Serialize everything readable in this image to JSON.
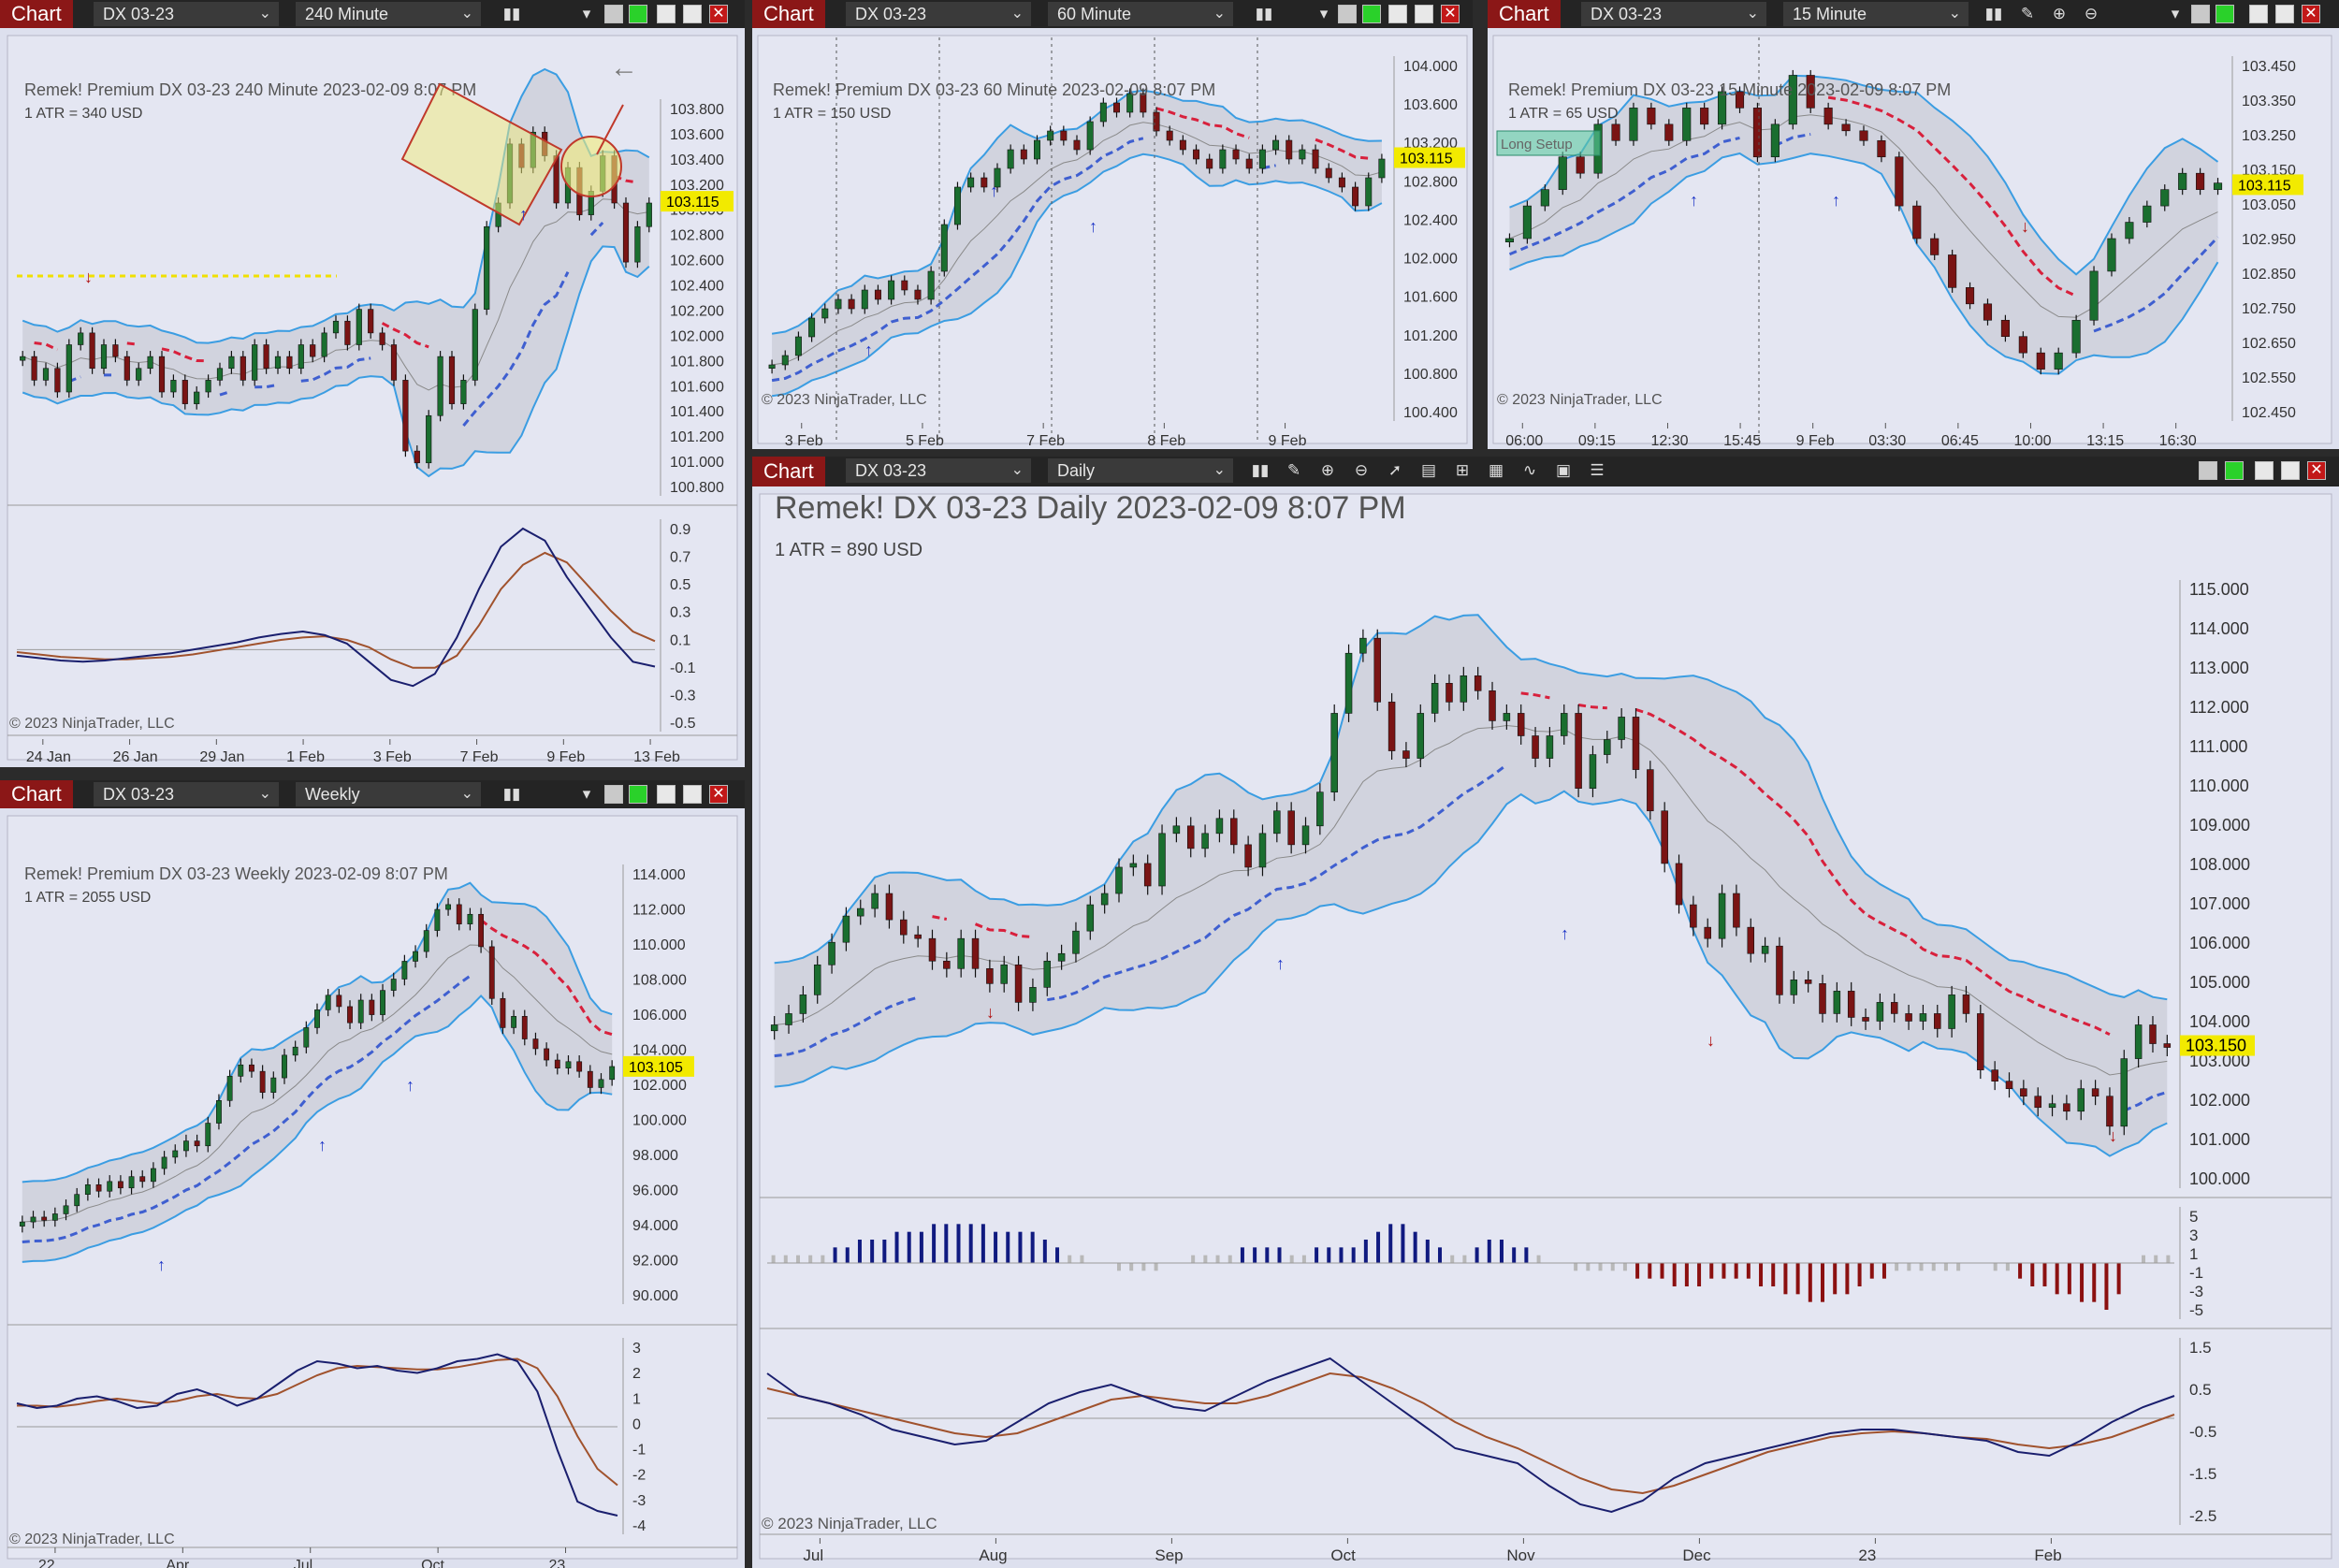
{
  "app": {
    "chart_label": "Chart"
  },
  "windows": [
    {
      "id": "w1",
      "instrument": "DX 03-23",
      "timeframe": "240 Minute",
      "header": "Remek!  Premium  DX 03-23  240 Minute  2023-02-09 8:07 PM",
      "atr": "1 ATR = 340 USD",
      "copyright": "© 2023 NinjaTrader, LLC",
      "last_price": "103.115",
      "y_ticks": [
        "103.800",
        "103.600",
        "103.400",
        "103.200",
        "103.000",
        "102.800",
        "102.600",
        "102.400",
        "102.200",
        "102.000",
        "101.800",
        "101.600",
        "101.400",
        "101.200",
        "101.000",
        "100.800"
      ],
      "osc_ticks": [
        "0.9",
        "0.7",
        "0.5",
        "0.3",
        "0.1",
        "-0.1",
        "-0.3",
        "-0.5"
      ],
      "x_ticks": [
        "24 Jan",
        "26 Jan",
        "29 Jan",
        "1 Feb",
        "3 Feb",
        "7 Feb",
        "9 Feb",
        "13 Feb"
      ]
    },
    {
      "id": "w2",
      "instrument": "DX 03-23",
      "timeframe": "60 Minute",
      "header": "Remek!  Premium  DX 03-23  60 Minute  2023-02-09 8:07 PM",
      "atr": "1 ATR = 150 USD",
      "copyright": "© 2023 NinjaTrader, LLC",
      "last_price": "103.115",
      "y_ticks": [
        "104.000",
        "103.600",
        "103.200",
        "102.800",
        "102.400",
        "102.000",
        "101.600",
        "101.200",
        "100.800",
        "100.400"
      ],
      "x_ticks": [
        "3 Feb",
        "5 Feb",
        "7 Feb",
        "8 Feb",
        "9 Feb"
      ]
    },
    {
      "id": "w3",
      "instrument": "DX 03-23",
      "timeframe": "15 Minute",
      "header": "Remek!  Premium  DX 03-23  15 Minute  2023-02-09 8:07 PM",
      "atr": "1 ATR = 65 USD",
      "copyright": "© 2023 NinjaTrader, LLC",
      "last_price": "103.115",
      "box_label": "Long Setup",
      "y_ticks": [
        "103.450",
        "103.350",
        "103.250",
        "103.150",
        "103.050",
        "102.950",
        "102.850",
        "102.750",
        "102.650",
        "102.550",
        "102.450"
      ],
      "x_ticks": [
        "06:00",
        "09:15",
        "12:30",
        "15:45",
        "9 Feb",
        "03:30",
        "06:45",
        "10:00",
        "13:15",
        "16:30"
      ]
    },
    {
      "id": "w4",
      "instrument": "DX 03-23",
      "timeframe": "Weekly",
      "header": "Remek!  Premium  DX 03-23  Weekly  2023-02-09 8:07 PM",
      "atr": "1 ATR = 2055 USD",
      "copyright": "© 2023 NinjaTrader, LLC",
      "last_price": "103.105",
      "y_ticks": [
        "114.000",
        "112.000",
        "110.000",
        "108.000",
        "106.000",
        "104.000",
        "102.000",
        "100.000",
        "98.000",
        "96.000",
        "94.000",
        "92.000",
        "90.000"
      ],
      "osc_ticks": [
        "3",
        "2",
        "1",
        "0",
        "-1",
        "-2",
        "-3",
        "-4"
      ],
      "x_ticks": [
        "22",
        "Apr",
        "Jul",
        "Oct",
        "23"
      ]
    },
    {
      "id": "w5",
      "instrument": "DX 03-23",
      "timeframe": "Daily",
      "header": "Remek!  DX 03-23  Daily  2023-02-09 8:07 PM",
      "atr": "1 ATR = 890 USD",
      "copyright": "© 2023 NinjaTrader, LLC",
      "last_price": "103.150",
      "y_ticks": [
        "115.000",
        "114.000",
        "113.000",
        "112.000",
        "111.000",
        "110.000",
        "109.000",
        "108.000",
        "107.000",
        "106.000",
        "105.000",
        "104.000",
        "103.000",
        "102.000",
        "101.000",
        "100.000"
      ],
      "hist_ticks": [
        "5",
        "3",
        "1",
        "-1",
        "-3",
        "-5"
      ],
      "osc_ticks": [
        "1.5",
        "0.5",
        "-0.5",
        "-1.5",
        "-2.5"
      ],
      "x_ticks": [
        "Jul",
        "Aug",
        "Sep",
        "Oct",
        "Nov",
        "Dec",
        "23",
        "Feb"
      ]
    }
  ],
  "colors": {
    "up": "#1a6e2f",
    "down": "#7a1414",
    "band": "#3b9de2",
    "trail_up": "#3f5fd0",
    "trail_down": "#d8203c",
    "stop": "#f0e000",
    "macd": "#1a1f6e",
    "signal": "#a0522d",
    "hist_up": "#101a80",
    "hist_down": "#8b1010",
    "hist_neutral": "#b8b8b8",
    "price_tag": "#f2ea00"
  },
  "chart_data": [
    {
      "type": "candlestick",
      "title": "Remek!  Premium  DX 03-23  240 Minute  2023-02-09 8:07 PM",
      "ylim": [
        100.7,
        103.9
      ],
      "close": [
        101.8,
        101.6,
        101.7,
        101.5,
        101.9,
        102.0,
        101.7,
        101.9,
        101.8,
        101.6,
        101.7,
        101.8,
        101.5,
        101.6,
        101.4,
        101.5,
        101.6,
        101.7,
        101.8,
        101.6,
        101.9,
        101.7,
        101.8,
        101.7,
        101.9,
        101.8,
        102.0,
        102.1,
        101.9,
        102.2,
        102.0,
        101.9,
        101.6,
        101.0,
        100.9,
        101.3,
        101.8,
        101.4,
        101.6,
        102.2,
        102.9,
        103.1,
        103.6,
        103.4,
        103.7,
        103.5,
        103.1,
        103.4,
        103.0,
        103.2,
        103.5,
        103.1,
        102.6,
        102.9,
        103.1
      ],
      "osc": {
        "ylim": [
          -0.6,
          1.0
        ],
        "macd": [
          -0.05,
          -0.07,
          -0.09,
          -0.1,
          -0.09,
          -0.07,
          -0.05,
          -0.03,
          0.0,
          0.03,
          0.06,
          0.1,
          0.13,
          0.15,
          0.12,
          0.05,
          -0.1,
          -0.25,
          -0.3,
          -0.2,
          0.1,
          0.5,
          0.85,
          1.0,
          0.9,
          0.6,
          0.35,
          0.1,
          -0.1,
          -0.14
        ],
        "signal": [
          -0.02,
          -0.04,
          -0.06,
          -0.07,
          -0.08,
          -0.08,
          -0.07,
          -0.06,
          -0.04,
          -0.01,
          0.02,
          0.05,
          0.08,
          0.1,
          0.11,
          0.08,
          0.02,
          -0.08,
          -0.15,
          -0.15,
          -0.05,
          0.2,
          0.5,
          0.7,
          0.8,
          0.72,
          0.52,
          0.32,
          0.15,
          0.07
        ]
      }
    },
    {
      "type": "candlestick",
      "title": "Remek!  Premium  DX 03-23  60 Minute  2023-02-09 8:07 PM",
      "ylim": [
        100.4,
        104.1
      ],
      "close": [
        100.9,
        101.0,
        101.2,
        101.4,
        101.5,
        101.6,
        101.5,
        101.7,
        101.6,
        101.8,
        101.7,
        101.6,
        101.9,
        102.4,
        102.8,
        102.9,
        102.8,
        103.0,
        103.2,
        103.1,
        103.3,
        103.4,
        103.3,
        103.2,
        103.5,
        103.7,
        103.6,
        103.8,
        103.6,
        103.4,
        103.3,
        103.2,
        103.1,
        103.0,
        103.2,
        103.1,
        103.0,
        103.2,
        103.3,
        103.1,
        103.2,
        103.0,
        102.9,
        102.8,
        102.6,
        102.9,
        103.1
      ]
    },
    {
      "type": "candlestick",
      "title": "Remek!  Premium  DX 03-23  15 Minute  2023-02-09 8:07 PM",
      "ylim": [
        102.42,
        103.48
      ],
      "close": [
        102.95,
        103.05,
        103.1,
        103.2,
        103.15,
        103.3,
        103.25,
        103.35,
        103.3,
        103.25,
        103.35,
        103.3,
        103.4,
        103.35,
        103.2,
        103.3,
        103.45,
        103.35,
        103.3,
        103.28,
        103.25,
        103.2,
        103.05,
        102.95,
        102.9,
        102.8,
        102.75,
        102.7,
        102.65,
        102.6,
        102.55,
        102.6,
        102.7,
        102.85,
        102.95,
        103.0,
        103.05,
        103.1,
        103.15,
        103.1,
        103.12
      ]
    },
    {
      "type": "candlestick",
      "title": "Remek!  Premium  DX 03-23  Weekly  2023-02-09 8:07 PM",
      "ylim": [
        89.0,
        115.0
      ],
      "close": [
        93.5,
        93.8,
        93.6,
        94.0,
        94.5,
        95.2,
        95.8,
        95.4,
        96.0,
        95.6,
        96.3,
        96.0,
        96.8,
        97.5,
        97.9,
        98.5,
        98.2,
        99.6,
        101.0,
        102.5,
        103.2,
        102.8,
        101.5,
        102.4,
        103.8,
        104.3,
        105.5,
        106.6,
        107.5,
        106.8,
        105.8,
        107.2,
        106.3,
        107.8,
        108.5,
        109.6,
        110.2,
        111.5,
        112.8,
        113.1,
        111.9,
        112.5,
        110.5,
        107.3,
        105.5,
        106.2,
        104.8,
        104.2,
        103.5,
        103.0,
        103.4,
        102.8,
        101.8,
        102.3,
        103.1
      ],
      "osc": {
        "ylim": [
          -4.2,
          3.4
        ],
        "macd": [
          1.0,
          0.8,
          0.9,
          1.2,
          1.3,
          1.1,
          0.8,
          0.9,
          1.4,
          1.6,
          1.3,
          0.9,
          1.2,
          1.8,
          2.4,
          2.8,
          2.7,
          2.5,
          2.6,
          2.4,
          2.3,
          2.5,
          2.8,
          2.9,
          3.1,
          2.8,
          1.5,
          -1.0,
          -3.2,
          -3.6,
          -3.8
        ],
        "signal": [
          0.9,
          0.9,
          0.85,
          0.95,
          1.1,
          1.2,
          1.1,
          1.0,
          1.1,
          1.3,
          1.4,
          1.25,
          1.2,
          1.4,
          1.8,
          2.2,
          2.5,
          2.6,
          2.55,
          2.5,
          2.45,
          2.45,
          2.55,
          2.7,
          2.85,
          2.9,
          2.5,
          1.3,
          -0.4,
          -1.8,
          -2.5
        ]
      }
    },
    {
      "type": "candlestick",
      "title": "Remek!  DX 03-23  Daily  2023-02-09 8:07 PM",
      "ylim": [
        99.6,
        115.3
      ],
      "close": [
        103.7,
        104.0,
        104.5,
        105.3,
        105.9,
        106.6,
        106.8,
        107.2,
        106.5,
        106.1,
        106.0,
        105.4,
        105.2,
        106.0,
        105.2,
        104.8,
        105.3,
        104.3,
        104.7,
        105.4,
        105.6,
        106.2,
        106.9,
        107.2,
        107.9,
        108.0,
        107.4,
        108.8,
        109.0,
        108.4,
        108.8,
        109.2,
        108.5,
        107.9,
        108.8,
        109.4,
        108.5,
        109.0,
        109.9,
        112.0,
        113.6,
        114.0,
        112.3,
        111.0,
        110.8,
        112.0,
        112.8,
        112.3,
        113.0,
        112.6,
        111.8,
        112.0,
        111.4,
        110.8,
        111.4,
        112.0,
        110.0,
        110.9,
        111.3,
        111.9,
        110.5,
        109.4,
        108.0,
        106.9,
        106.3,
        106.0,
        107.2,
        106.3,
        105.6,
        105.8,
        104.5,
        104.9,
        104.8,
        104.0,
        104.6,
        103.9,
        103.8,
        104.3,
        104.0,
        103.8,
        104.0,
        103.6,
        104.5,
        104.0,
        102.5,
        102.2,
        102.0,
        101.8,
        101.5,
        101.6,
        101.4,
        102.0,
        101.8,
        101.0,
        102.8,
        103.7,
        103.2,
        103.1
      ],
      "hist": {
        "ylim": [
          -6,
          6
        ],
        "values": [
          1,
          1,
          1,
          1,
          1,
          2,
          2,
          3,
          3,
          3,
          4,
          4,
          4,
          5,
          5,
          5,
          5,
          5,
          4,
          4,
          4,
          4,
          3,
          2,
          1,
          1,
          0,
          0,
          -1,
          -1,
          -1,
          -1,
          0,
          0,
          1,
          1,
          1,
          1,
          2,
          2,
          2,
          2,
          1,
          1,
          2,
          2,
          2,
          2,
          3,
          4,
          5,
          5,
          4,
          3,
          2,
          1,
          1,
          2,
          3,
          3,
          2,
          2,
          1,
          0,
          0,
          -1,
          -1,
          -1,
          -1,
          -1,
          -2,
          -2,
          -2,
          -3,
          -3,
          -3,
          -2,
          -2,
          -2,
          -2,
          -3,
          -3,
          -4,
          -4,
          -5,
          -5,
          -4,
          -4,
          -3,
          -2,
          -2,
          -1,
          -1,
          -1,
          -1,
          -1,
          -1,
          0,
          0,
          -1,
          -1,
          -2,
          -3,
          -3,
          -4,
          -4,
          -5,
          -5,
          -6,
          -4,
          0,
          1,
          1,
          1
        ]
      },
      "osc": {
        "ylim": [
          -2.6,
          1.9
        ],
        "macd": [
          1.2,
          0.6,
          0.4,
          0.1,
          -0.3,
          -0.5,
          -0.7,
          -0.6,
          -0.1,
          0.4,
          0.7,
          0.9,
          0.6,
          0.3,
          0.2,
          0.6,
          1.0,
          1.3,
          1.6,
          1.0,
          0.4,
          -0.2,
          -0.8,
          -1.0,
          -1.2,
          -1.8,
          -2.3,
          -2.5,
          -2.2,
          -1.6,
          -1.2,
          -1.0,
          -0.8,
          -0.6,
          -0.4,
          -0.3,
          -0.3,
          -0.4,
          -0.5,
          -0.6,
          -0.9,
          -1.0,
          -0.6,
          -0.1,
          0.3,
          0.6
        ],
        "signal": [
          0.8,
          0.6,
          0.4,
          0.2,
          0.0,
          -0.2,
          -0.4,
          -0.5,
          -0.4,
          -0.1,
          0.2,
          0.5,
          0.6,
          0.5,
          0.4,
          0.4,
          0.6,
          0.9,
          1.2,
          1.1,
          0.8,
          0.4,
          -0.1,
          -0.5,
          -0.8,
          -1.2,
          -1.6,
          -1.9,
          -2.0,
          -1.8,
          -1.5,
          -1.2,
          -0.9,
          -0.7,
          -0.5,
          -0.4,
          -0.35,
          -0.4,
          -0.5,
          -0.55,
          -0.7,
          -0.8,
          -0.7,
          -0.5,
          -0.2,
          0.1
        ]
      }
    }
  ]
}
